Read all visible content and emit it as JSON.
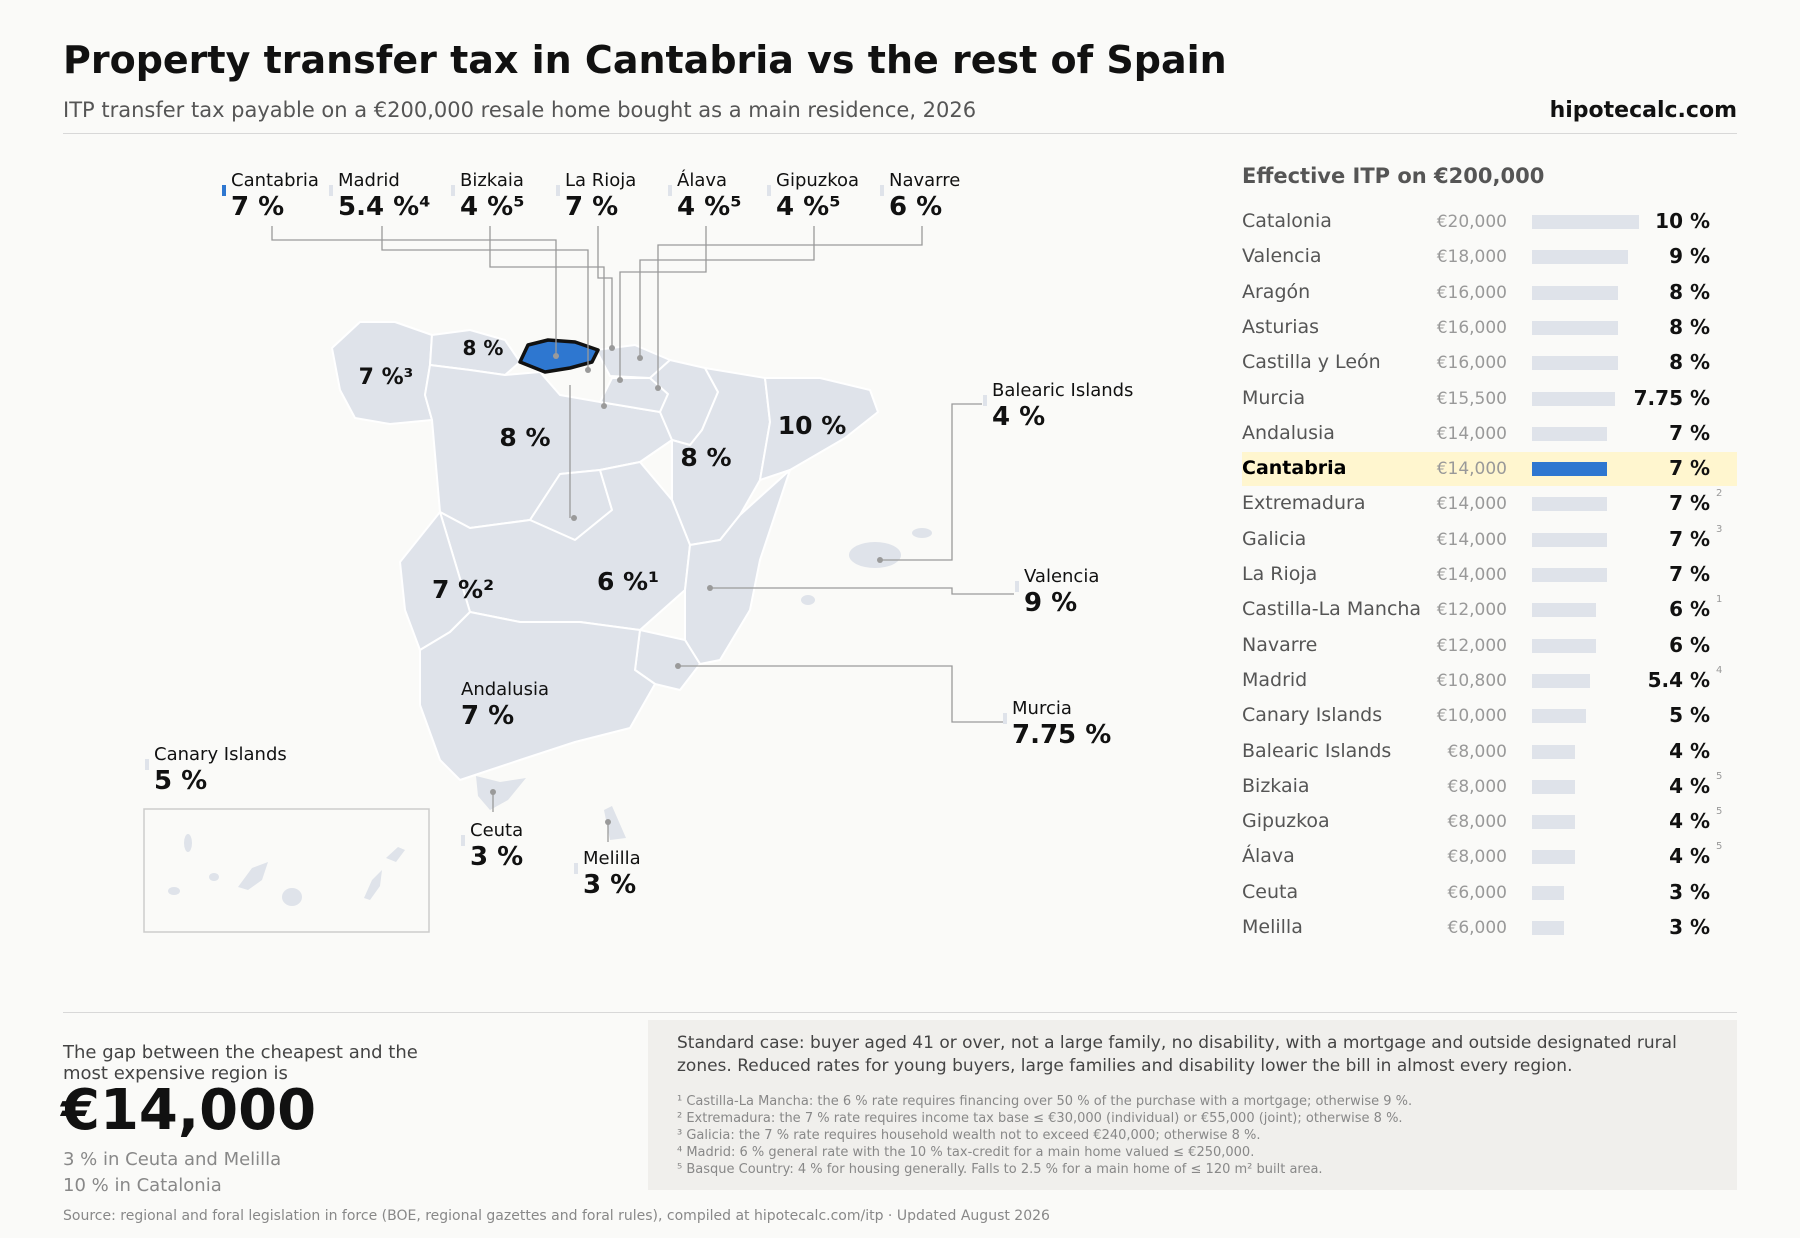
{
  "header": {
    "title": "Property transfer tax in Cantabria vs the rest of Spain",
    "subtitle": "ITP transfer tax payable on a €200,000 resale home bought as a main residence, 2026",
    "brand": "hipotecalc.com"
  },
  "colors": {
    "highlight": "#2e77d0",
    "region_fill": "#dfe3ea",
    "highlight_row": "#fff6cf"
  },
  "map": {
    "callouts": [
      {
        "name": "Cantabria",
        "rate": "7 %",
        "highlight": true
      },
      {
        "name": "Madrid",
        "rate": "5.4 %⁴"
      },
      {
        "name": "Bizkaia",
        "rate": "4 %⁵"
      },
      {
        "name": "La Rioja",
        "rate": "7 %"
      },
      {
        "name": "Álava",
        "rate": "4 %⁵"
      },
      {
        "name": "Gipuzkoa",
        "rate": "4 %⁵"
      },
      {
        "name": "Navarre",
        "rate": "6 %"
      },
      {
        "name": "Balearic Islands",
        "rate": "4 %"
      },
      {
        "name": "Valencia",
        "rate": "9 %"
      },
      {
        "name": "Murcia",
        "rate": "7.75 %"
      },
      {
        "name": "Andalusia",
        "rate": "7 %"
      },
      {
        "name": "Canary Islands",
        "rate": "5 %"
      },
      {
        "name": "Ceuta",
        "rate": "3 %"
      },
      {
        "name": "Melilla",
        "rate": "3 %"
      }
    ],
    "inline_labels": [
      {
        "text": "8 %",
        "region": "Asturias"
      },
      {
        "text": "7 %³",
        "region": "Galicia"
      },
      {
        "text": "8 %",
        "region": "Castilla y León"
      },
      {
        "text": "10 %",
        "region": "Catalonia"
      },
      {
        "text": "8 %",
        "region": "Aragón"
      },
      {
        "text": "7 %²",
        "region": "Extremadura"
      },
      {
        "text": "6 %¹",
        "region": "Castilla-La Mancha"
      }
    ]
  },
  "chart_data": {
    "type": "bar",
    "title": "Effective ITP on €200,000",
    "orientation": "horizontal",
    "highlight": "Cantabria",
    "rows": [
      {
        "name": "Catalonia",
        "amount": "€20,000",
        "value": 20000,
        "rate": "10 %",
        "note": ""
      },
      {
        "name": "Valencia",
        "amount": "€18,000",
        "value": 18000,
        "rate": "9 %",
        "note": ""
      },
      {
        "name": "Aragón",
        "amount": "€16,000",
        "value": 16000,
        "rate": "8 %",
        "note": ""
      },
      {
        "name": "Asturias",
        "amount": "€16,000",
        "value": 16000,
        "rate": "8 %",
        "note": ""
      },
      {
        "name": "Castilla y León",
        "amount": "€16,000",
        "value": 16000,
        "rate": "8 %",
        "note": ""
      },
      {
        "name": "Murcia",
        "amount": "€15,500",
        "value": 15500,
        "rate": "7.75 %",
        "note": ""
      },
      {
        "name": "Andalusia",
        "amount": "€14,000",
        "value": 14000,
        "rate": "7 %",
        "note": ""
      },
      {
        "name": "Cantabria",
        "amount": "€14,000",
        "value": 14000,
        "rate": "7 %",
        "note": ""
      },
      {
        "name": "Extremadura",
        "amount": "€14,000",
        "value": 14000,
        "rate": "7 %",
        "note": "2"
      },
      {
        "name": "Galicia",
        "amount": "€14,000",
        "value": 14000,
        "rate": "7 %",
        "note": "3"
      },
      {
        "name": "La Rioja",
        "amount": "€14,000",
        "value": 14000,
        "rate": "7 %",
        "note": ""
      },
      {
        "name": "Castilla-La Mancha",
        "amount": "€12,000",
        "value": 12000,
        "rate": "6 %",
        "note": "1"
      },
      {
        "name": "Navarre",
        "amount": "€12,000",
        "value": 12000,
        "rate": "6 %",
        "note": ""
      },
      {
        "name": "Madrid",
        "amount": "€10,800",
        "value": 10800,
        "rate": "5.4 %",
        "note": "4"
      },
      {
        "name": "Canary Islands",
        "amount": "€10,000",
        "value": 10000,
        "rate": "5 %",
        "note": ""
      },
      {
        "name": "Balearic Islands",
        "amount": "€8,000",
        "value": 8000,
        "rate": "4 %",
        "note": ""
      },
      {
        "name": "Bizkaia",
        "amount": "€8,000",
        "value": 8000,
        "rate": "4 %",
        "note": "5"
      },
      {
        "name": "Gipuzkoa",
        "amount": "€8,000",
        "value": 8000,
        "rate": "4 %",
        "note": "5"
      },
      {
        "name": "Álava",
        "amount": "€8,000",
        "value": 8000,
        "rate": "4 %",
        "note": "5"
      },
      {
        "name": "Ceuta",
        "amount": "€6,000",
        "value": 6000,
        "rate": "3 %",
        "note": ""
      },
      {
        "name": "Melilla",
        "amount": "€6,000",
        "value": 6000,
        "rate": "3 %",
        "note": ""
      }
    ]
  },
  "gap": {
    "lead": "The gap between the cheapest and the most expensive region is",
    "amount": "€14,000",
    "low": "3 % in Ceuta and Melilla",
    "high": "10 % in Catalonia"
  },
  "notes": {
    "standard_case": "Standard case: buyer aged 41 or over, not a large family, no disability, with a mortgage and outside designated rural zones. Reduced rates for young buyers, large families and disability lower the bill in almost every region.",
    "footnotes": [
      "¹ Castilla-La Mancha: the 6 % rate requires financing over 50 % of the purchase with a mortgage; otherwise 9 %.",
      "² Extremadura: the 7 % rate requires income tax base ≤ €30,000 (individual) or €55,000 (joint); otherwise 8 %.",
      "³ Galicia: the 7 % rate requires household wealth not to exceed €240,000; otherwise 8 %.",
      "⁴ Madrid: 6 % general rate with the 10 % tax-credit for a main home valued ≤ €250,000.",
      "⁵ Basque Country: 4 % for housing generally. Falls to 2.5 % for a main home of ≤ 120 m² built area."
    ]
  },
  "source": "Source: regional and foral legislation in force (BOE, regional gazettes and foral rules), compiled at hipotecalc.com/itp · Updated August 2026"
}
